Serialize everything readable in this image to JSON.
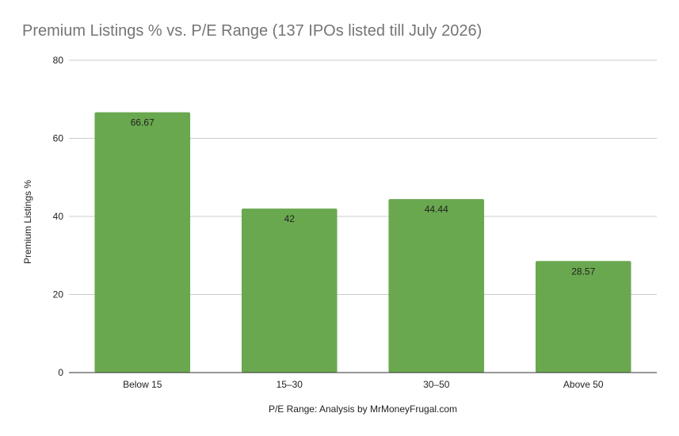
{
  "chart_data": {
    "type": "bar",
    "title": "Premium Listings % vs. P/E Range (137 IPOs listed till July 2026)",
    "xlabel": "P/E Range: Analysis by MrMoneyFrugal.com",
    "ylabel": "Premium Listings %",
    "categories": [
      "Below 15",
      "15–30",
      "30–50",
      "Above 50"
    ],
    "values": [
      66.67,
      42,
      44.44,
      28.57
    ],
    "value_labels": [
      "66.67",
      "42",
      "44.44",
      "28.57"
    ],
    "ylim": [
      0,
      80
    ],
    "yticks": [
      "0",
      "20",
      "40",
      "60",
      "80"
    ],
    "grid": true,
    "legend": "none",
    "bar_color": "#6aa84f"
  }
}
